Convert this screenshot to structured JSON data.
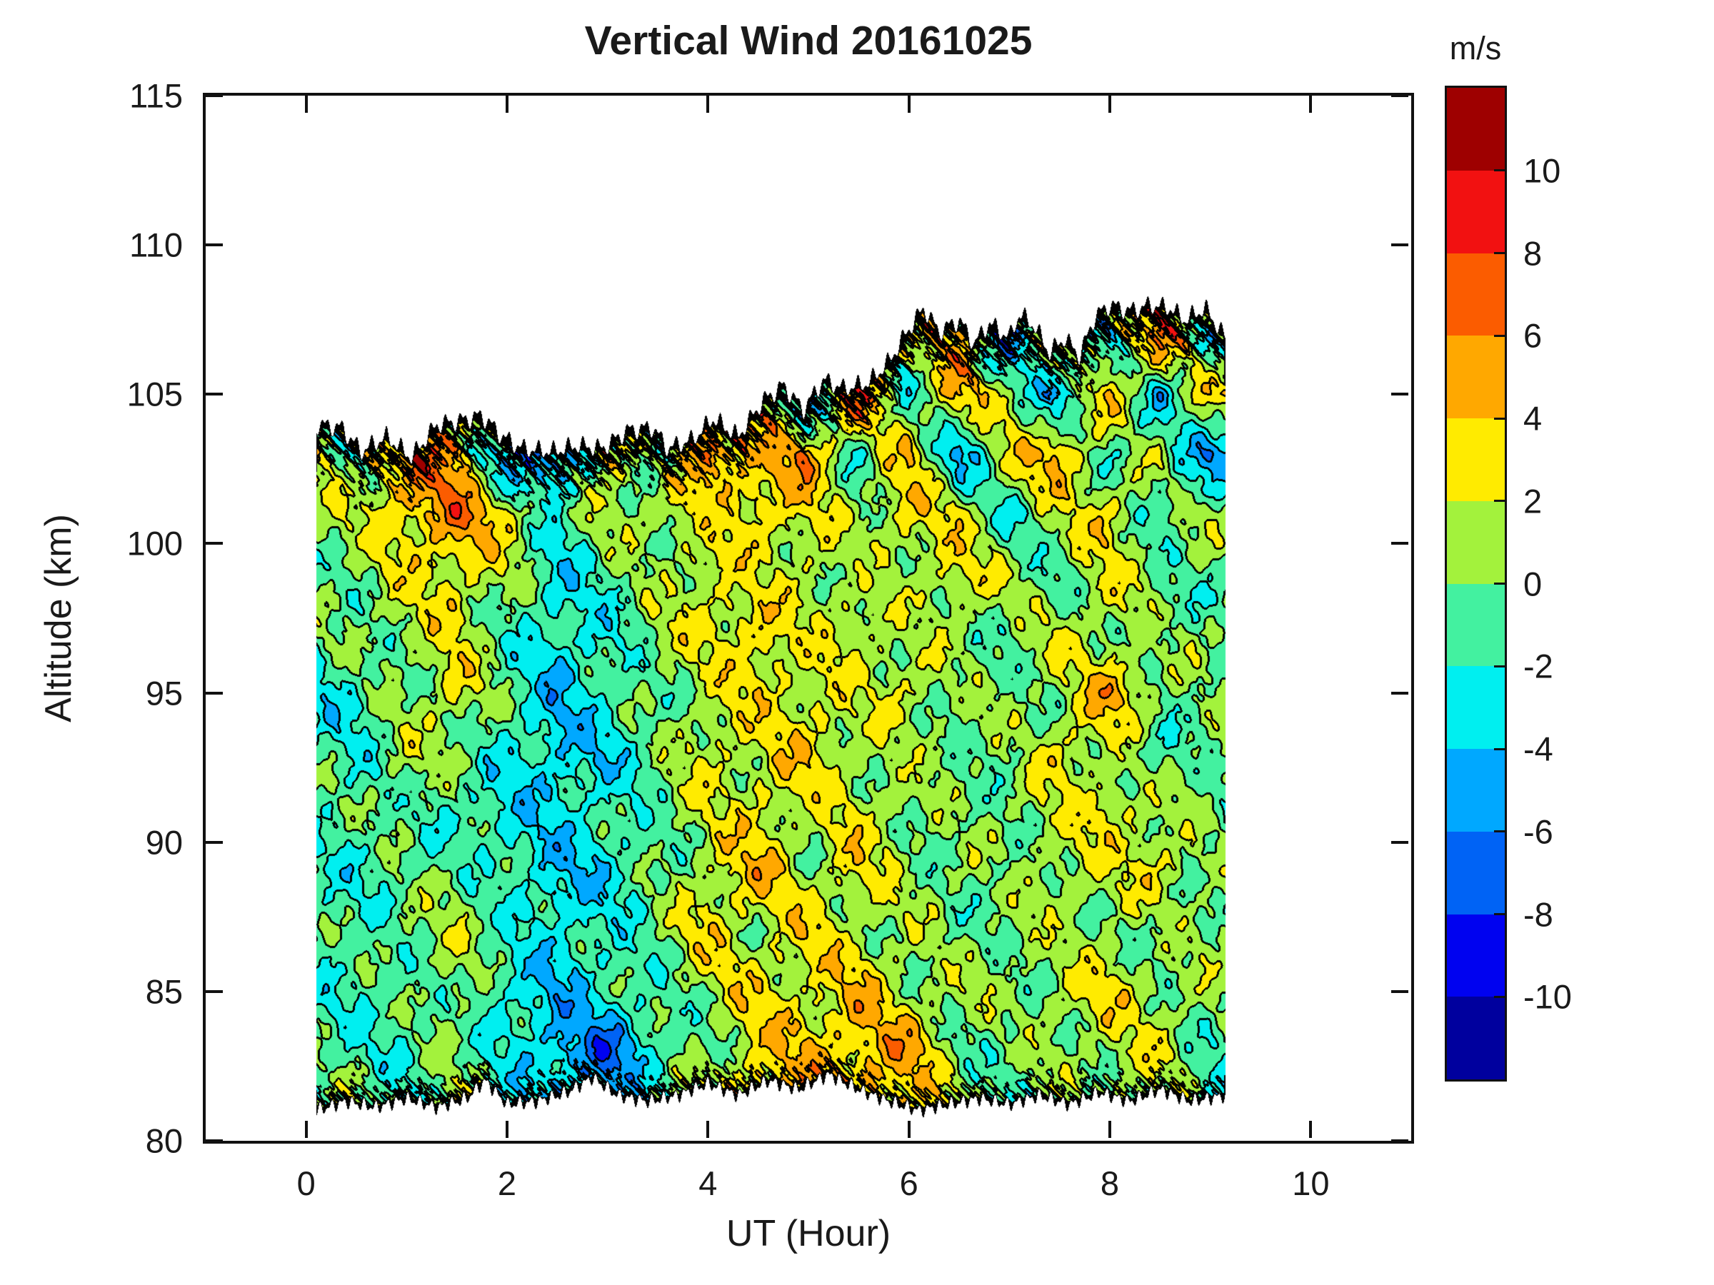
{
  "header": {
    "title": "Vertical Wind 20161025"
  },
  "axis_color": "#1a1a1a",
  "chart_data": {
    "type": "heatmap",
    "title": "Vertical Wind 20161025",
    "xlabel": "UT (Hour)",
    "ylabel": "Altitude (km)",
    "xlim": [
      -1,
      11
    ],
    "ylim": [
      80,
      115
    ],
    "x_tick_labels": [
      "0",
      "2",
      "4",
      "6",
      "8",
      "10"
    ],
    "x_tick_values": [
      0,
      2,
      4,
      6,
      8,
      10
    ],
    "y_tick_labels": [
      "80",
      "85",
      "90",
      "95",
      "100",
      "105",
      "110",
      "115"
    ],
    "y_tick_values": [
      80,
      85,
      90,
      95,
      100,
      105,
      110,
      115
    ],
    "contour_line_color": "#000000",
    "data_extent": {
      "x": [
        0.1,
        9.15
      ],
      "altitude": [
        80.6,
        108.0
      ]
    },
    "colorbar": {
      "label": "m/s",
      "tick_labels": [
        "10",
        "8",
        "6",
        "4",
        "2",
        "0",
        "-2",
        "-4",
        "-6",
        "-8",
        "-10"
      ],
      "tick_values": [
        10,
        8,
        6,
        4,
        2,
        0,
        -2,
        -4,
        -6,
        -8,
        -10
      ],
      "range": [
        -12,
        12
      ],
      "levels": [
        -12,
        -10,
        -8,
        -6,
        -4,
        -2,
        0,
        2,
        4,
        6,
        8,
        10,
        12
      ],
      "colors_low_to_high": [
        "#00009E",
        "#0002F0",
        "#0063F5",
        "#00A8FF",
        "#00EFF0",
        "#43F1A0",
        "#A3F23C",
        "#FFEB00",
        "#FFA800",
        "#FB5C00",
        "#F21111",
        "#9E0000"
      ]
    },
    "grid": {
      "x": [
        0,
        0.5,
        1,
        1.5,
        2,
        2.5,
        3,
        3.5,
        4,
        4.5,
        5,
        5.5,
        6,
        6.5,
        7,
        7.5,
        8,
        8.5,
        9
      ],
      "altitude": [
        81,
        83,
        85,
        87,
        89,
        91,
        93,
        95,
        97,
        99,
        101,
        103,
        105,
        107
      ],
      "values_by_altitude": [
        [
          -1,
          0,
          -1,
          1,
          -2,
          -3,
          -4,
          -1,
          2,
          4,
          3,
          6,
          3,
          1,
          0,
          -1,
          1,
          0,
          -2
        ],
        [
          -1,
          -1,
          -2,
          0,
          -2,
          -5,
          -7,
          -2,
          0,
          3,
          4,
          4,
          5,
          0,
          -1,
          1,
          1,
          2,
          -1
        ],
        [
          -1,
          -2,
          -1,
          1,
          -3,
          -4,
          -2,
          -1,
          1,
          3,
          2,
          4,
          1,
          1,
          0,
          1,
          3,
          1,
          0
        ],
        [
          -2,
          -1,
          0,
          1,
          -1,
          -3,
          -2,
          0,
          3,
          1,
          3,
          1,
          1,
          -1,
          1,
          0,
          1,
          -1,
          1
        ],
        [
          -1,
          -2,
          -1,
          0,
          -2,
          -4,
          -3,
          -1,
          2,
          4,
          1,
          3,
          0,
          1,
          -1,
          2,
          1,
          3,
          0
        ],
        [
          -1,
          -1,
          0,
          -2,
          -3,
          -3,
          -2,
          0,
          1,
          3,
          1,
          2,
          1,
          -1,
          1,
          1,
          3,
          1,
          -1
        ],
        [
          -1,
          -2,
          1,
          0,
          -2,
          -4,
          -3,
          -1,
          3,
          1,
          4,
          1,
          0,
          1,
          -1,
          3,
          1,
          -2,
          1
        ],
        [
          -3,
          -2,
          0,
          3,
          -1,
          -4,
          -2,
          0,
          1,
          3,
          2,
          1,
          3,
          -1,
          1,
          0,
          5,
          1,
          -1
        ],
        [
          -1,
          0,
          1,
          2,
          -1,
          -3,
          -2,
          1,
          2,
          4,
          1,
          3,
          0,
          1,
          -1,
          2,
          1,
          -1,
          1
        ],
        [
          0,
          0,
          2,
          3,
          1,
          -3,
          -1,
          0,
          3,
          1,
          2,
          0,
          1,
          3,
          1,
          -1,
          2,
          1,
          -2
        ],
        [
          1,
          1,
          4,
          6,
          3,
          -2,
          1,
          2,
          1,
          4,
          2,
          1,
          3,
          2,
          -2,
          1,
          4,
          -3,
          2
        ],
        [
          2,
          0,
          7,
          5,
          -6,
          -7,
          4,
          -3,
          8,
          3,
          6,
          -2,
          4,
          -5,
          2,
          6,
          -3,
          2,
          -6
        ],
        [
          0,
          0,
          0,
          0,
          0,
          0,
          0,
          0,
          0,
          6,
          -7,
          8,
          -2,
          4,
          2,
          -6,
          5,
          -4,
          3
        ],
        [
          0,
          0,
          0,
          0,
          0,
          0,
          0,
          0,
          0,
          0,
          0,
          0,
          0,
          6,
          -8,
          3,
          -3,
          7,
          -2
        ]
      ]
    },
    "top_edge": [
      [
        0.1,
        104.0
      ],
      [
        0.35,
        103.9
      ],
      [
        0.55,
        103.1
      ],
      [
        0.8,
        103.6
      ],
      [
        1.05,
        102.9
      ],
      [
        1.3,
        104.0
      ],
      [
        1.5,
        104.1
      ],
      [
        1.75,
        104.3
      ],
      [
        1.95,
        103.6
      ],
      [
        2.15,
        103.2
      ],
      [
        2.45,
        103.1
      ],
      [
        2.7,
        103.3
      ],
      [
        2.95,
        103.2
      ],
      [
        3.2,
        103.8
      ],
      [
        3.45,
        103.9
      ],
      [
        3.6,
        103.2
      ],
      [
        3.85,
        103.5
      ],
      [
        4.05,
        104.2
      ],
      [
        4.3,
        103.6
      ],
      [
        4.55,
        104.8
      ],
      [
        4.75,
        105.3
      ],
      [
        4.95,
        104.5
      ],
      [
        5.15,
        105.5
      ],
      [
        5.35,
        105.2
      ],
      [
        5.6,
        105.4
      ],
      [
        5.8,
        106.1
      ],
      [
        6.0,
        107.2
      ],
      [
        6.15,
        107.9
      ],
      [
        6.3,
        107.1
      ],
      [
        6.5,
        107.5
      ],
      [
        6.65,
        106.7
      ],
      [
        6.8,
        107.4
      ],
      [
        7.0,
        106.9
      ],
      [
        7.1,
        107.7
      ],
      [
        7.25,
        107.3
      ],
      [
        7.4,
        106.4
      ],
      [
        7.55,
        106.9
      ],
      [
        7.7,
        106.3
      ],
      [
        7.85,
        107.6
      ],
      [
        8.0,
        108.0
      ],
      [
        8.2,
        107.8
      ],
      [
        8.4,
        108.0
      ],
      [
        8.6,
        107.9
      ],
      [
        8.75,
        107.5
      ],
      [
        8.95,
        107.9
      ],
      [
        9.15,
        106.9
      ]
    ],
    "bottom_edge": [
      [
        0.1,
        81.0
      ],
      [
        0.4,
        81.3
      ],
      [
        0.7,
        81.1
      ],
      [
        1.0,
        81.4
      ],
      [
        1.3,
        81.1
      ],
      [
        1.6,
        81.4
      ],
      [
        1.78,
        82.0
      ],
      [
        2.0,
        81.2
      ],
      [
        2.3,
        81.3
      ],
      [
        2.6,
        81.6
      ],
      [
        2.85,
        82.1
      ],
      [
        3.1,
        81.5
      ],
      [
        3.4,
        81.3
      ],
      [
        3.7,
        81.5
      ],
      [
        4.0,
        81.9
      ],
      [
        4.3,
        81.5
      ],
      [
        4.6,
        82.0
      ],
      [
        4.9,
        81.7
      ],
      [
        5.2,
        82.2
      ],
      [
        5.5,
        81.7
      ],
      [
        5.8,
        81.3
      ],
      [
        6.1,
        81.0
      ],
      [
        6.4,
        81.2
      ],
      [
        6.7,
        81.4
      ],
      [
        7.0,
        81.2
      ],
      [
        7.3,
        81.5
      ],
      [
        7.6,
        81.2
      ],
      [
        7.9,
        81.6
      ],
      [
        8.2,
        81.3
      ],
      [
        8.5,
        81.7
      ],
      [
        8.8,
        81.3
      ],
      [
        9.15,
        81.5
      ]
    ]
  }
}
